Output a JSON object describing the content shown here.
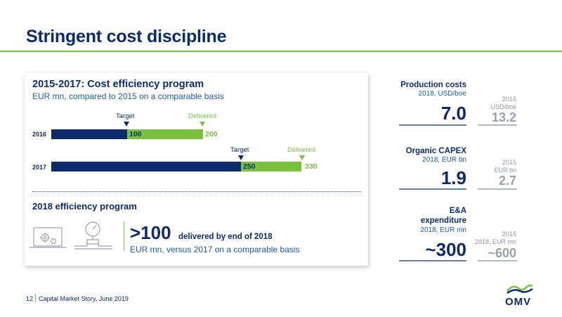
{
  "title": "Stringent cost discipline",
  "program": {
    "heading": "2015-2017: Cost efficiency program",
    "subheading": "EUR mn, compared to 2015 on a comparable basis",
    "target_label": "Target",
    "delivered_label": "Delivered"
  },
  "chart_data": {
    "type": "bar",
    "categories": [
      "2016",
      "2017"
    ],
    "series": [
      {
        "name": "Target",
        "values": [
          100,
          250
        ]
      },
      {
        "name": "Delivered",
        "values": [
          200,
          330
        ]
      }
    ],
    "title": "2015-2017: Cost efficiency program",
    "xlabel": "",
    "ylabel": "EUR mn, compared to 2015 on a comparable basis",
    "xlim": [
      0,
      330
    ],
    "colors": {
      "Target": "#0d2b6b",
      "Delivered": "#7ac142"
    }
  },
  "bars": [
    {
      "year": "2016",
      "target_value": "100",
      "delivered_value": "200"
    },
    {
      "year": "2017",
      "target_value": "250",
      "delivered_value": "330"
    }
  ],
  "efficiency": {
    "heading": "2018 efficiency program",
    "big_number": ">100",
    "big_suffix": "delivered by end of 2018",
    "subtitle": "EUR mn, versus 2017 on a comparable basis",
    "icons": [
      "laptop-gears-icon",
      "gauge-pipeline-icon"
    ]
  },
  "kpis": [
    {
      "label": "Production costs",
      "unit": "2018, USD/boe",
      "value": "7.0",
      "compare_year": "2015",
      "compare_unit": "USD/boe",
      "compare_value": "13.2"
    },
    {
      "label": "Organic CAPEX",
      "unit": "2018, EUR bn",
      "value": "1.9",
      "compare_year": "2015",
      "compare_unit": "EUR bn",
      "compare_value": "2.7"
    },
    {
      "label_line1": "E&A",
      "label_line2": "expenditure",
      "unit": "2018, EUR mn",
      "value": "~300",
      "compare_year": "2015",
      "compare_unit": "2018, EUR mn",
      "compare_value": "~600"
    }
  ],
  "footer": {
    "page": "12",
    "text": "Capital Market Story, June 2019"
  },
  "brand": {
    "logo_text": "OMV",
    "colors": {
      "navy": "#0d2b6b",
      "green": "#7ac142",
      "blue": "#1f5aa6",
      "grey": "#9aa1ab"
    }
  }
}
